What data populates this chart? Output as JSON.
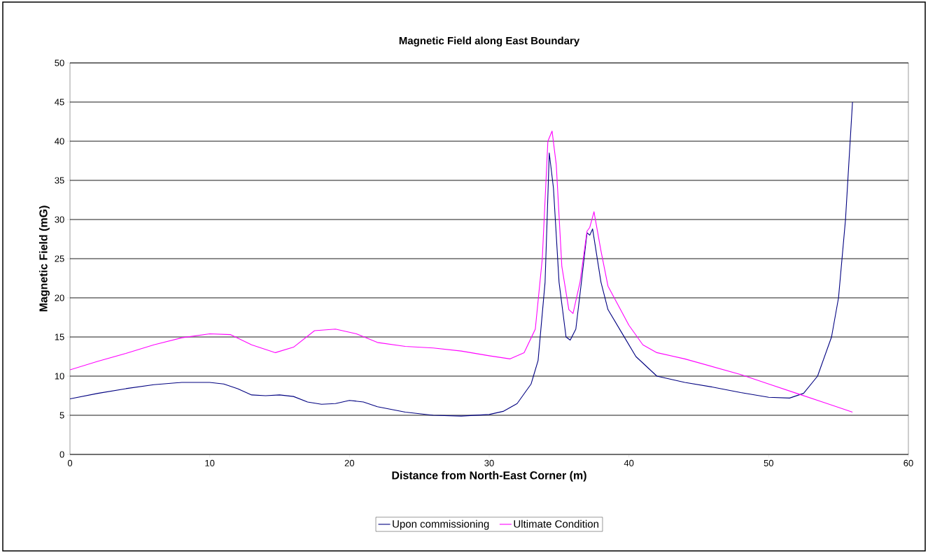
{
  "chart_data": {
    "type": "line",
    "title": "Magnetic Field along East Boundary",
    "xlabel": "Distance from North-East Corner (m)",
    "ylabel": "Magnetic Field (mG)",
    "xlim": [
      0,
      60
    ],
    "xticks": [
      0,
      10,
      20,
      30,
      40,
      50,
      60
    ],
    "ylim": [
      0,
      50
    ],
    "yticks": [
      0,
      5,
      10,
      15,
      20,
      25,
      30,
      35,
      40,
      45,
      50
    ],
    "grid": "y",
    "legend": "bottom",
    "marker": "none",
    "line_style": "solid",
    "series": [
      {
        "name": "Upon commissioning",
        "color": "#000080",
        "x": [
          0,
          2,
          4,
          6,
          8,
          10,
          11,
          12,
          13,
          14,
          15,
          16,
          17,
          18,
          19,
          20,
          21,
          22,
          24,
          26,
          28,
          30,
          31,
          32,
          33,
          33.5,
          34,
          34.3,
          34.6,
          35,
          35.5,
          35.8,
          36.2,
          36.6,
          37,
          37.2,
          37.4,
          38,
          38.5,
          39.5,
          40.5,
          42,
          44,
          46,
          48,
          50,
          51.5,
          52.5,
          53.5,
          54.5,
          55,
          55.5,
          56
        ],
        "values": [
          7.1,
          7.8,
          8.4,
          8.9,
          9.2,
          9.2,
          9.0,
          8.4,
          7.6,
          7.5,
          7.6,
          7.4,
          6.7,
          6.4,
          6.5,
          6.9,
          6.7,
          6.1,
          5.4,
          5.0,
          4.9,
          5.1,
          5.5,
          6.5,
          9,
          12,
          22,
          38.5,
          34,
          22,
          15,
          14.6,
          16,
          22,
          28.3,
          28,
          28.8,
          22,
          18.5,
          15.5,
          12.5,
          10,
          9.2,
          8.6,
          7.9,
          7.3,
          7.2,
          7.8,
          10,
          15,
          20,
          30,
          45
        ]
      },
      {
        "name": "Ultimate Condition",
        "color": "#ff00ff",
        "x": [
          0,
          2,
          4,
          6,
          8,
          10,
          11.5,
          13,
          14.7,
          16,
          17.5,
          19,
          20.5,
          22,
          24,
          26,
          28,
          30,
          31.5,
          32.5,
          33.3,
          33.8,
          34.2,
          34.5,
          34.8,
          35.2,
          35.7,
          36,
          36.5,
          37,
          37.2,
          37.5,
          38,
          38.5,
          40,
          41,
          42,
          44,
          46,
          48,
          50,
          52,
          54,
          56
        ],
        "values": [
          10.8,
          11.9,
          12.9,
          14.0,
          14.9,
          15.4,
          15.3,
          14.0,
          13.0,
          13.7,
          15.8,
          16.0,
          15.4,
          14.3,
          13.8,
          13.6,
          13.2,
          12.6,
          12.2,
          13,
          16,
          25,
          40,
          41.3,
          37,
          24,
          18.5,
          18,
          22,
          28.5,
          29,
          31,
          26,
          21.5,
          16.5,
          14,
          13,
          12.2,
          11.2,
          10.2,
          9,
          7.8,
          6.6,
          5.4
        ]
      }
    ]
  }
}
